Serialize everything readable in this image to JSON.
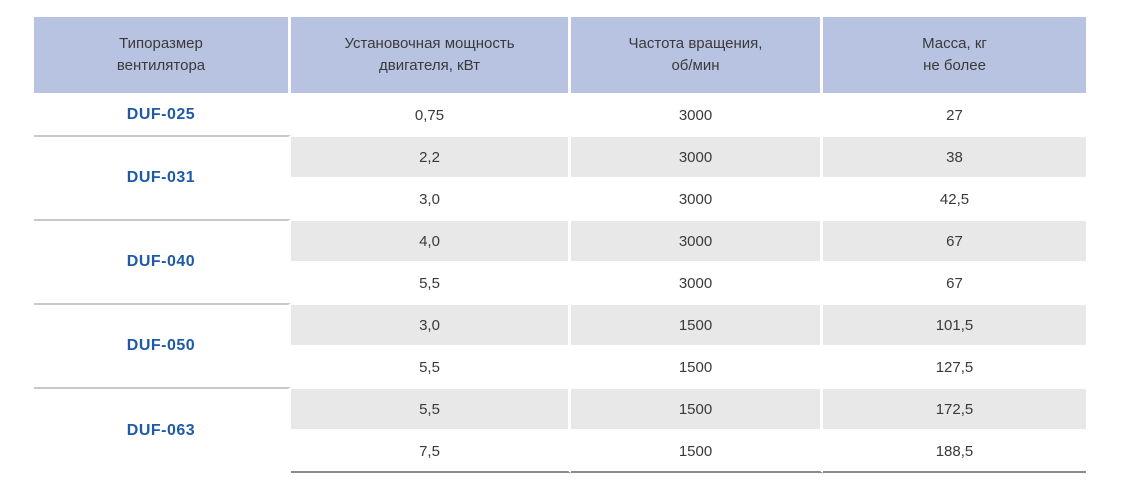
{
  "table": {
    "headers": [
      "Типоразмер\nвентилятора",
      "Установочная мощность\nдвигателя, кВт",
      "Частота вращения,\nоб/мин",
      "Масса, кг\nне более"
    ],
    "groups": [
      {
        "model": "DUF-025",
        "rows": [
          {
            "power": "0,75",
            "rpm": "3000",
            "mass": "27"
          }
        ]
      },
      {
        "model": "DUF-031",
        "rows": [
          {
            "power": "2,2",
            "rpm": "3000",
            "mass": "38"
          },
          {
            "power": "3,0",
            "rpm": "3000",
            "mass": "42,5"
          }
        ]
      },
      {
        "model": "DUF-040",
        "rows": [
          {
            "power": "4,0",
            "rpm": "3000",
            "mass": "67"
          },
          {
            "power": "5,5",
            "rpm": "3000",
            "mass": "67"
          }
        ]
      },
      {
        "model": "DUF-050",
        "rows": [
          {
            "power": "3,0",
            "rpm": "1500",
            "mass": "101,5"
          },
          {
            "power": "5,5",
            "rpm": "1500",
            "mass": "127,5"
          }
        ]
      },
      {
        "model": "DUF-063",
        "rows": [
          {
            "power": "5,5",
            "rpm": "1500",
            "mass": "172,5"
          },
          {
            "power": "7,5",
            "rpm": "1500",
            "mass": "188,5"
          }
        ]
      }
    ]
  },
  "colors": {
    "header_bg": "#b8c3e2",
    "shaded_row_bg": "#e8e8e8",
    "model_text": "#1f5aa6"
  }
}
